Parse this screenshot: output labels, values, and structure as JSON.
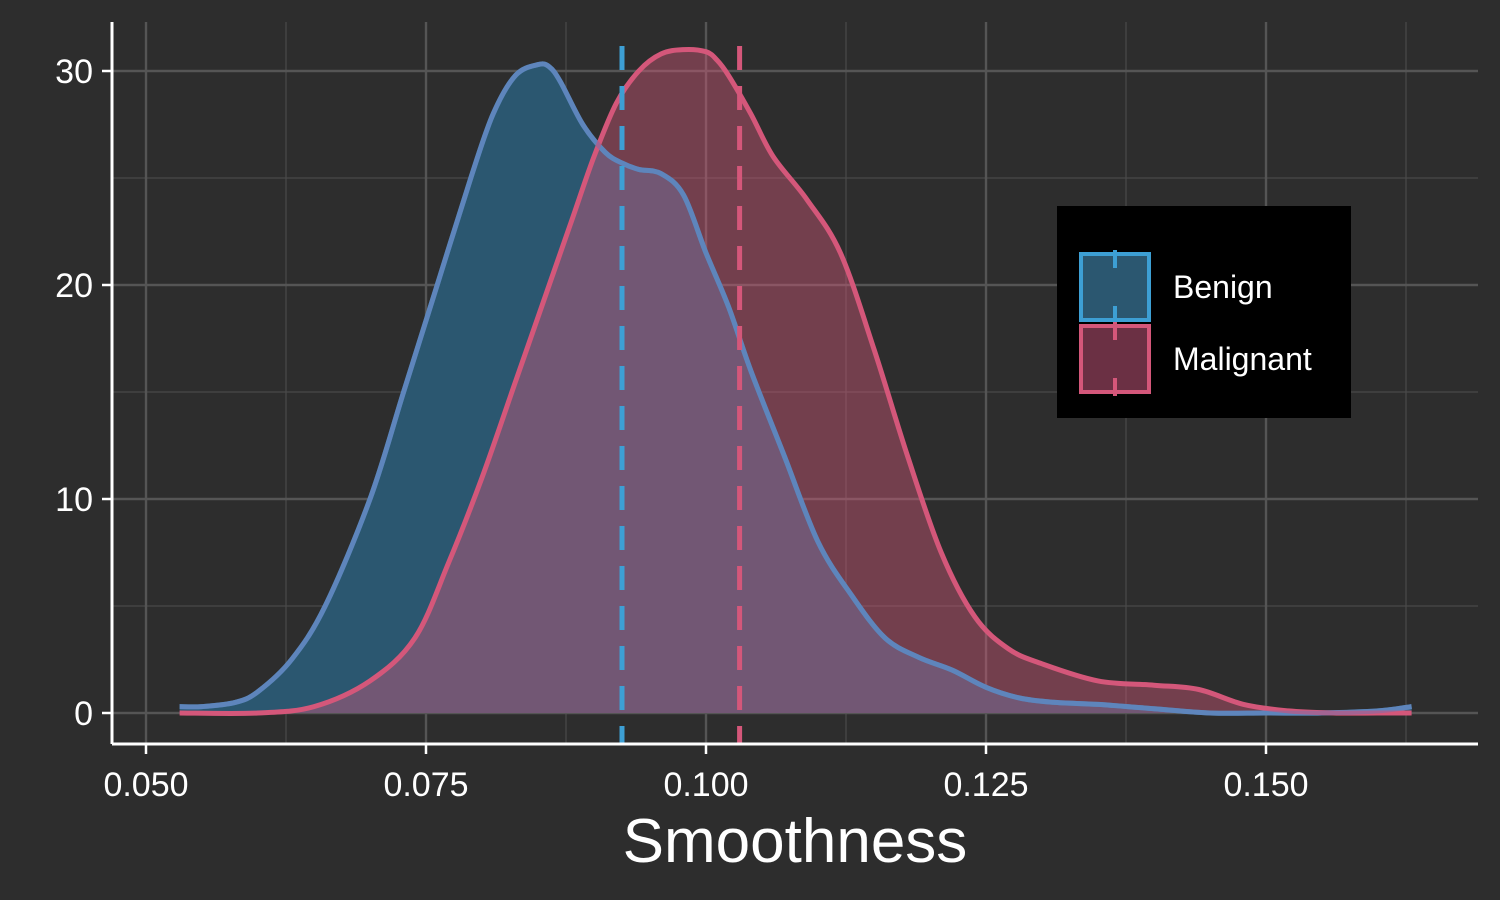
{
  "chart_data": {
    "type": "area",
    "title": "",
    "xlabel": "Smoothness",
    "ylabel": "",
    "xlim": [
      0.05,
      0.165
    ],
    "ylim": [
      0,
      30
    ],
    "x_ticks": [
      "0.050",
      "0.075",
      "0.100",
      "0.125",
      "0.150"
    ],
    "y_ticks": [
      "0",
      "10",
      "20",
      "30"
    ],
    "grid": true,
    "legend_position": "right",
    "series": [
      {
        "name": "Benign",
        "color": "#3d9fd4",
        "fill": "#2b5770",
        "mean": 0.0925,
        "x": [
          0.053,
          0.055,
          0.058,
          0.06,
          0.063,
          0.066,
          0.07,
          0.073,
          0.076,
          0.079,
          0.081,
          0.083,
          0.085,
          0.086,
          0.087,
          0.089,
          0.091,
          0.0925,
          0.094,
          0.096,
          0.098,
          0.1,
          0.102,
          0.104,
          0.107,
          0.11,
          0.113,
          0.116,
          0.119,
          0.122,
          0.125,
          0.128,
          0.131,
          0.135,
          0.14,
          0.145,
          0.15,
          0.155,
          0.16,
          0.163
        ],
        "y": [
          0.3,
          0.3,
          0.5,
          1.0,
          2.5,
          5.0,
          10.0,
          15.0,
          20.0,
          25.0,
          28.0,
          29.8,
          30.3,
          30.2,
          29.5,
          27.5,
          26.2,
          25.7,
          25.4,
          25.2,
          24.2,
          21.5,
          19.0,
          16.0,
          12.0,
          8.0,
          5.5,
          3.5,
          2.6,
          2.0,
          1.2,
          0.7,
          0.5,
          0.4,
          0.2,
          0.0,
          0.0,
          0.0,
          0.1,
          0.3
        ]
      },
      {
        "name": "Malignant",
        "color": "#d4577a",
        "fill": "#6b3044",
        "mean": 0.103,
        "x": [
          0.053,
          0.06,
          0.065,
          0.07,
          0.074,
          0.077,
          0.08,
          0.083,
          0.086,
          0.088,
          0.09,
          0.092,
          0.094,
          0.096,
          0.098,
          0.1,
          0.101,
          0.102,
          0.104,
          0.106,
          0.109,
          0.112,
          0.115,
          0.118,
          0.121,
          0.124,
          0.127,
          0.13,
          0.135,
          0.14,
          0.144,
          0.148,
          0.152,
          0.156,
          0.16,
          0.163
        ],
        "y": [
          0.0,
          0.0,
          0.3,
          1.5,
          3.5,
          7.0,
          11.0,
          15.5,
          20.0,
          23.0,
          26.0,
          28.5,
          30.0,
          30.8,
          31.0,
          30.9,
          30.5,
          29.8,
          28.0,
          26.0,
          24.0,
          21.5,
          17.0,
          12.0,
          7.5,
          4.5,
          3.0,
          2.3,
          1.5,
          1.3,
          1.1,
          0.4,
          0.1,
          0.0,
          0.0,
          0.0
        ]
      }
    ]
  }
}
